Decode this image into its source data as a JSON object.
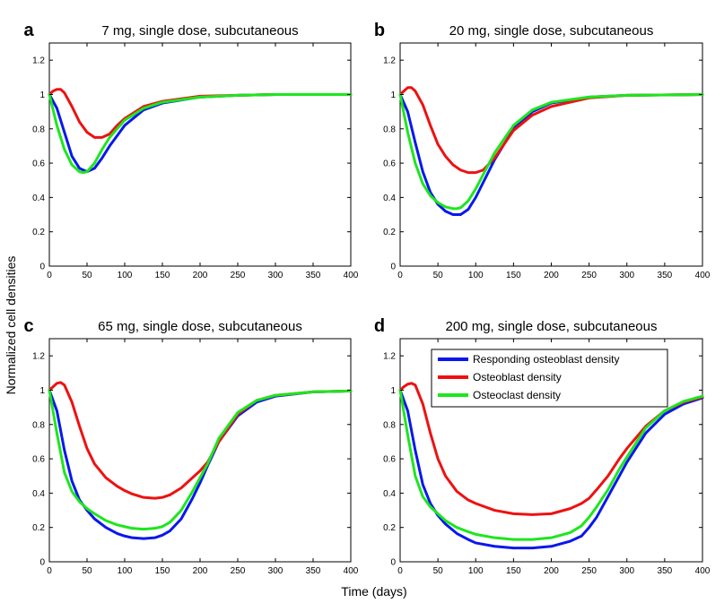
{
  "figure": {
    "xlabel": "Time (days)",
    "ylabel": "Normalized cell densities"
  },
  "legend": {
    "entries": [
      {
        "name": "Responding osteoblast density",
        "color": "#0a17ee"
      },
      {
        "name": "Osteoblast density",
        "color": "#ee1111"
      },
      {
        "name": "Osteoclast density",
        "color": "#1de61d"
      }
    ]
  },
  "chart_data": [
    {
      "type": "line",
      "label": "a",
      "title": "7 mg, single dose, subcutaneous",
      "xlim": [
        0,
        400
      ],
      "ylim": [
        0,
        1.3
      ],
      "xticks": [
        0,
        50,
        100,
        150,
        200,
        250,
        300,
        350,
        400
      ],
      "yticks": [
        0,
        0.2,
        0.4,
        0.6,
        0.8,
        1,
        1.2
      ],
      "series": [
        {
          "name": "Responding osteoblast density",
          "x": [
            0,
            10,
            20,
            30,
            40,
            50,
            60,
            70,
            80,
            100,
            125,
            150,
            200,
            250,
            300,
            400
          ],
          "y": [
            1.0,
            0.92,
            0.78,
            0.64,
            0.57,
            0.55,
            0.57,
            0.63,
            0.7,
            0.82,
            0.91,
            0.95,
            0.985,
            0.995,
            1.0,
            1.0
          ]
        },
        {
          "name": "Osteoblast density",
          "x": [
            0,
            5,
            10,
            15,
            20,
            30,
            40,
            50,
            60,
            70,
            80,
            90,
            100,
            125,
            150,
            200,
            250,
            300,
            400
          ],
          "y": [
            1.0,
            1.02,
            1.03,
            1.03,
            1.01,
            0.93,
            0.84,
            0.78,
            0.75,
            0.75,
            0.77,
            0.82,
            0.86,
            0.93,
            0.96,
            0.99,
            0.995,
            1.0,
            1.0
          ]
        },
        {
          "name": "Osteoclast density",
          "x": [
            0,
            10,
            20,
            30,
            40,
            45,
            50,
            60,
            70,
            80,
            100,
            125,
            150,
            200,
            250,
            300,
            400
          ],
          "y": [
            1.0,
            0.82,
            0.68,
            0.59,
            0.55,
            0.545,
            0.55,
            0.6,
            0.68,
            0.75,
            0.85,
            0.92,
            0.955,
            0.985,
            0.995,
            1.0,
            1.0
          ]
        }
      ]
    },
    {
      "type": "line",
      "label": "b",
      "title": "20 mg, single dose, subcutaneous",
      "xlim": [
        0,
        400
      ],
      "ylim": [
        0,
        1.3
      ],
      "xticks": [
        0,
        50,
        100,
        150,
        200,
        250,
        300,
        350,
        400
      ],
      "yticks": [
        0,
        0.2,
        0.4,
        0.6,
        0.8,
        1,
        1.2
      ],
      "series": [
        {
          "name": "Responding osteoblast density",
          "x": [
            0,
            10,
            20,
            30,
            40,
            50,
            60,
            70,
            80,
            90,
            100,
            125,
            150,
            175,
            200,
            250,
            300,
            400
          ],
          "y": [
            1.0,
            0.9,
            0.72,
            0.55,
            0.43,
            0.36,
            0.32,
            0.3,
            0.3,
            0.33,
            0.4,
            0.62,
            0.8,
            0.9,
            0.95,
            0.985,
            0.995,
            1.0
          ]
        },
        {
          "name": "Osteoblast density",
          "x": [
            0,
            5,
            10,
            15,
            20,
            30,
            40,
            50,
            60,
            70,
            80,
            90,
            100,
            110,
            125,
            150,
            175,
            200,
            250,
            300,
            400
          ],
          "y": [
            1.0,
            1.02,
            1.04,
            1.04,
            1.02,
            0.94,
            0.82,
            0.71,
            0.64,
            0.59,
            0.56,
            0.545,
            0.545,
            0.56,
            0.63,
            0.79,
            0.88,
            0.93,
            0.98,
            0.995,
            1.0
          ]
        },
        {
          "name": "Osteoclast density",
          "x": [
            0,
            10,
            20,
            30,
            40,
            50,
            60,
            70,
            75,
            80,
            90,
            100,
            125,
            150,
            175,
            200,
            250,
            300,
            400
          ],
          "y": [
            1.0,
            0.78,
            0.6,
            0.48,
            0.41,
            0.37,
            0.345,
            0.335,
            0.335,
            0.34,
            0.38,
            0.45,
            0.66,
            0.82,
            0.91,
            0.955,
            0.985,
            0.995,
            1.0
          ]
        }
      ]
    },
    {
      "type": "line",
      "label": "c",
      "title": "65 mg, single dose, subcutaneous",
      "xlim": [
        0,
        400
      ],
      "ylim": [
        0,
        1.3
      ],
      "xticks": [
        0,
        50,
        100,
        150,
        200,
        250,
        300,
        350,
        400
      ],
      "yticks": [
        0,
        0.2,
        0.4,
        0.6,
        0.8,
        1,
        1.2
      ],
      "series": [
        {
          "name": "Responding osteoblast density",
          "x": [
            0,
            10,
            20,
            30,
            40,
            50,
            60,
            75,
            90,
            100,
            110,
            125,
            140,
            150,
            160,
            175,
            190,
            200,
            210,
            225,
            250,
            275,
            300,
            350,
            400
          ],
          "y": [
            1.0,
            0.88,
            0.65,
            0.47,
            0.36,
            0.3,
            0.25,
            0.2,
            0.165,
            0.15,
            0.14,
            0.135,
            0.14,
            0.155,
            0.18,
            0.25,
            0.37,
            0.46,
            0.56,
            0.7,
            0.85,
            0.93,
            0.965,
            0.99,
            0.995
          ]
        },
        {
          "name": "Osteoblast density",
          "x": [
            0,
            5,
            10,
            15,
            20,
            30,
            40,
            50,
            60,
            75,
            90,
            100,
            110,
            125,
            140,
            150,
            160,
            175,
            190,
            200,
            210,
            225,
            250,
            275,
            300,
            350,
            400
          ],
          "y": [
            1.0,
            1.02,
            1.04,
            1.045,
            1.03,
            0.93,
            0.79,
            0.66,
            0.57,
            0.49,
            0.44,
            0.415,
            0.395,
            0.375,
            0.37,
            0.375,
            0.39,
            0.43,
            0.49,
            0.53,
            0.58,
            0.7,
            0.86,
            0.94,
            0.97,
            0.99,
            0.995
          ]
        },
        {
          "name": "Osteoclast density",
          "x": [
            0,
            10,
            20,
            30,
            40,
            50,
            60,
            75,
            90,
            100,
            110,
            125,
            140,
            150,
            160,
            175,
            190,
            200,
            210,
            225,
            250,
            275,
            300,
            350,
            400
          ],
          "y": [
            1.0,
            0.75,
            0.52,
            0.41,
            0.35,
            0.31,
            0.28,
            0.24,
            0.215,
            0.205,
            0.195,
            0.19,
            0.195,
            0.205,
            0.23,
            0.3,
            0.41,
            0.49,
            0.57,
            0.72,
            0.87,
            0.94,
            0.97,
            0.99,
            0.995
          ]
        }
      ]
    },
    {
      "type": "line",
      "label": "d",
      "title": "200 mg, single dose, subcutaneous",
      "xlim": [
        0,
        400
      ],
      "ylim": [
        0,
        1.3
      ],
      "xticks": [
        0,
        50,
        100,
        150,
        200,
        250,
        300,
        350,
        400
      ],
      "yticks": [
        0,
        0.2,
        0.4,
        0.6,
        0.8,
        1,
        1.2
      ],
      "series": [
        {
          "name": "Responding osteoblast density",
          "x": [
            0,
            10,
            20,
            30,
            40,
            50,
            60,
            75,
            90,
            100,
            125,
            150,
            175,
            200,
            225,
            240,
            250,
            260,
            275,
            290,
            300,
            325,
            350,
            375,
            400
          ],
          "y": [
            1.0,
            0.88,
            0.65,
            0.45,
            0.34,
            0.27,
            0.22,
            0.165,
            0.13,
            0.11,
            0.09,
            0.08,
            0.08,
            0.09,
            0.12,
            0.15,
            0.2,
            0.26,
            0.38,
            0.5,
            0.58,
            0.75,
            0.86,
            0.92,
            0.955
          ]
        },
        {
          "name": "Osteoblast density",
          "x": [
            0,
            5,
            10,
            15,
            20,
            30,
            40,
            50,
            60,
            75,
            90,
            100,
            125,
            150,
            175,
            200,
            225,
            240,
            250,
            260,
            275,
            290,
            300,
            325,
            350,
            375,
            400
          ],
          "y": [
            1.0,
            1.02,
            1.035,
            1.04,
            1.03,
            0.92,
            0.75,
            0.6,
            0.5,
            0.41,
            0.36,
            0.34,
            0.3,
            0.28,
            0.275,
            0.28,
            0.31,
            0.34,
            0.37,
            0.42,
            0.5,
            0.6,
            0.66,
            0.79,
            0.88,
            0.93,
            0.96
          ]
        },
        {
          "name": "Osteoclast density",
          "x": [
            0,
            10,
            20,
            30,
            40,
            50,
            60,
            75,
            90,
            100,
            125,
            150,
            175,
            200,
            225,
            240,
            250,
            260,
            275,
            290,
            300,
            325,
            350,
            375,
            400
          ],
          "y": [
            1.0,
            0.74,
            0.5,
            0.38,
            0.32,
            0.28,
            0.24,
            0.2,
            0.175,
            0.16,
            0.14,
            0.13,
            0.13,
            0.14,
            0.17,
            0.21,
            0.26,
            0.32,
            0.42,
            0.54,
            0.61,
            0.78,
            0.88,
            0.935,
            0.965
          ]
        }
      ]
    }
  ]
}
